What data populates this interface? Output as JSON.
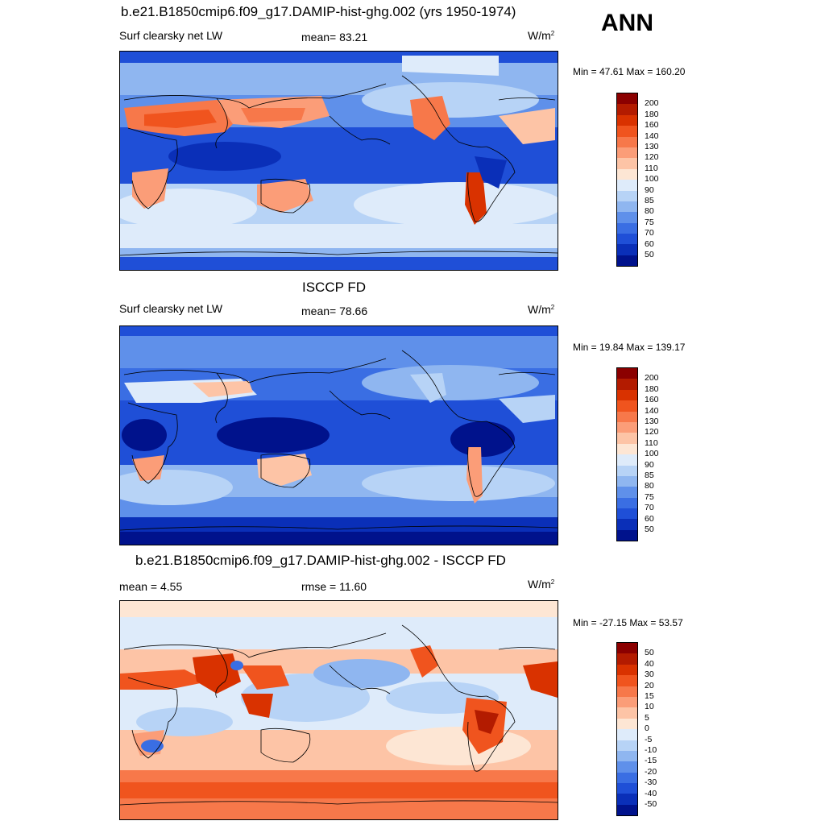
{
  "season": "ANN",
  "panels": [
    {
      "title": "b.e21.B1850cmip6.f09_g17.DAMIP-hist-ghg.002 (yrs 1950-1974)",
      "left_label": "Surf clearsky net LW",
      "center_label": "mean=  83.21",
      "units_base": "W/m",
      "units_exp": "2",
      "minmax": "Min =  47.61 Max = 160.20",
      "scale": "abs"
    },
    {
      "title": "ISCCP FD",
      "left_label": "Surf clearsky net LW",
      "center_label": "mean=  78.66",
      "units_base": "W/m",
      "units_exp": "2",
      "minmax": "Min =  19.84 Max = 139.17",
      "scale": "abs"
    },
    {
      "title": "b.e21.B1850cmip6.f09_g17.DAMIP-hist-ghg.002 - ISCCP FD",
      "left_label": "mean =   4.55",
      "center_label": "rmse =  11.60",
      "units_base": "W/m",
      "units_exp": "2",
      "minmax": "Min = -27.15 Max =  53.57",
      "scale": "diff"
    }
  ],
  "colorbars": {
    "abs": {
      "labels": [
        "200",
        "180",
        "160",
        "140",
        "130",
        "120",
        "110",
        "100",
        "90",
        "85",
        "80",
        "75",
        "70",
        "60",
        "50"
      ],
      "colors": [
        "#8b0000",
        "#b31b00",
        "#d93200",
        "#f0541e",
        "#f7784a",
        "#fb9d78",
        "#fdc4a6",
        "#fde6d4",
        "#deebfa",
        "#b7d3f6",
        "#8fb6f0",
        "#5f90ea",
        "#3a6ee3",
        "#1f4fd7",
        "#0a2fb8",
        "#00128c"
      ]
    },
    "diff": {
      "labels": [
        "50",
        "40",
        "30",
        "20",
        "15",
        "10",
        "5",
        "0",
        "-5",
        "-10",
        "-15",
        "-20",
        "-30",
        "-40",
        "-50"
      ],
      "colors": [
        "#8b0000",
        "#b31b00",
        "#d93200",
        "#f0541e",
        "#f7784a",
        "#fb9d78",
        "#fdc4a6",
        "#fde6d4",
        "#deebfa",
        "#b7d3f6",
        "#8fb6f0",
        "#5f90ea",
        "#3a6ee3",
        "#1f4fd7",
        "#0a2fb8",
        "#00128c"
      ]
    }
  }
}
